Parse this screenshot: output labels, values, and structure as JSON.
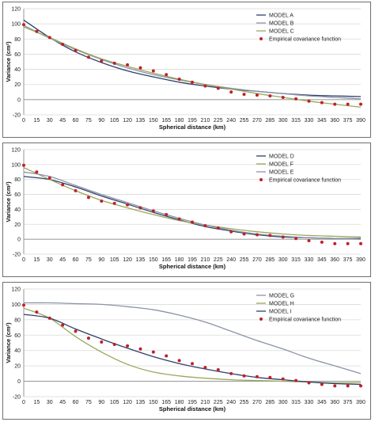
{
  "chart_data": [
    {
      "type": "line",
      "xlabel": "Spherical distance (km)",
      "ylabel": "Variance (cm²)",
      "ylim": [
        -20,
        120
      ],
      "yticks": [
        -20,
        0,
        20,
        40,
        60,
        80,
        100,
        120
      ],
      "xticks": [
        0,
        15,
        30,
        45,
        60,
        75,
        90,
        105,
        120,
        135,
        150,
        165,
        180,
        195,
        210,
        225,
        240,
        255,
        270,
        285,
        300,
        315,
        330,
        345,
        360,
        375,
        390
      ],
      "grid": "horizontal",
      "legend": "top-right",
      "series": [
        {
          "name": "MODEL A",
          "color": "#2f3f6b",
          "style": "line",
          "x": [
            0,
            30,
            60,
            90,
            120,
            150,
            180,
            210,
            240,
            270,
            300,
            330,
            360,
            390
          ],
          "y": [
            105,
            82,
            63,
            49,
            38,
            30,
            23,
            18,
            14,
            11,
            8,
            6,
            5,
            4
          ]
        },
        {
          "name": "MODEL B",
          "color": "#8b93a8",
          "style": "line",
          "x": [
            0,
            30,
            60,
            90,
            120,
            150,
            180,
            210,
            240,
            270,
            300,
            330,
            360,
            390
          ],
          "y": [
            98,
            81,
            66,
            53,
            42,
            33,
            26,
            20,
            15,
            11,
            8,
            5,
            3,
            1
          ]
        },
        {
          "name": "MODEL C",
          "color": "#9aa85a",
          "style": "line",
          "x": [
            0,
            30,
            60,
            90,
            120,
            150,
            180,
            210,
            240,
            270,
            300,
            330,
            360,
            390
          ],
          "y": [
            96,
            82,
            67,
            54,
            44,
            35,
            27,
            20,
            14,
            8,
            3,
            -2,
            -6,
            -10
          ]
        },
        {
          "name": "Empirical covariance function",
          "color": "#c0202a",
          "style": "points",
          "x": [
            0,
            15,
            30,
            45,
            60,
            75,
            90,
            105,
            120,
            135,
            150,
            165,
            180,
            195,
            210,
            225,
            240,
            255,
            270,
            285,
            300,
            315,
            330,
            345,
            360,
            375,
            390
          ],
          "y": [
            99,
            90,
            82,
            73,
            65,
            56,
            51,
            48,
            46,
            42,
            38,
            33,
            27,
            23,
            18,
            15,
            10,
            7,
            6,
            5,
            3,
            1,
            -2,
            -4,
            -6,
            -6,
            -6
          ]
        }
      ]
    },
    {
      "type": "line",
      "xlabel": "Spherical distance (km)",
      "ylabel": "Variance (cm²)",
      "ylim": [
        -20,
        120
      ],
      "yticks": [
        -20,
        0,
        20,
        40,
        60,
        80,
        100,
        120
      ],
      "xticks": [
        0,
        15,
        30,
        45,
        60,
        75,
        90,
        105,
        120,
        135,
        150,
        165,
        180,
        195,
        210,
        225,
        240,
        255,
        270,
        285,
        300,
        315,
        330,
        345,
        360,
        375,
        390
      ],
      "grid": "horizontal",
      "legend": "top-right",
      "series": [
        {
          "name": "MODEL D",
          "color": "#2f3f6b",
          "style": "line",
          "x": [
            0,
            30,
            60,
            90,
            120,
            150,
            180,
            210,
            240,
            270,
            300,
            330,
            360,
            390
          ],
          "y": [
            84,
            80,
            70,
            58,
            47,
            36,
            26,
            17,
            11,
            6,
            3,
            2,
            1,
            1
          ]
        },
        {
          "name": "MODEL F",
          "color": "#9aa85a",
          "style": "line",
          "x": [
            0,
            30,
            60,
            90,
            120,
            150,
            180,
            210,
            240,
            270,
            300,
            330,
            360,
            390
          ],
          "y": [
            96,
            80,
            65,
            52,
            42,
            33,
            25,
            19,
            14,
            10,
            7,
            5,
            4,
            3
          ]
        },
        {
          "name": "MODEL E",
          "color": "#8b93a8",
          "style": "line",
          "x": [
            0,
            30,
            60,
            90,
            120,
            150,
            180,
            210,
            240,
            270,
            300,
            330,
            360,
            390
          ],
          "y": [
            90,
            84,
            72,
            60,
            49,
            38,
            28,
            19,
            12,
            7,
            4,
            2,
            1,
            0
          ]
        },
        {
          "name": "Empirical covariance function",
          "color": "#c0202a",
          "style": "points",
          "x": [
            0,
            15,
            30,
            45,
            60,
            75,
            90,
            105,
            120,
            135,
            150,
            165,
            180,
            195,
            210,
            225,
            240,
            255,
            270,
            285,
            300,
            315,
            330,
            345,
            360,
            375,
            390
          ],
          "y": [
            99,
            90,
            82,
            73,
            65,
            56,
            51,
            48,
            46,
            42,
            38,
            33,
            27,
            23,
            18,
            15,
            10,
            7,
            6,
            5,
            3,
            1,
            -2,
            -4,
            -6,
            -6,
            -6
          ]
        }
      ]
    },
    {
      "type": "line",
      "xlabel": "Spherical distance (km)",
      "ylabel": "Variance (cm²)",
      "ylim": [
        -20,
        120
      ],
      "yticks": [
        -20,
        0,
        20,
        40,
        60,
        80,
        100,
        120
      ],
      "xticks": [
        0,
        15,
        30,
        45,
        60,
        75,
        90,
        105,
        120,
        135,
        150,
        165,
        180,
        195,
        210,
        225,
        240,
        255,
        270,
        285,
        300,
        315,
        330,
        345,
        360,
        375,
        390
      ],
      "grid": "horizontal",
      "legend": "top-right",
      "series": [
        {
          "name": "MODEL G",
          "color": "#8b93a8",
          "style": "line",
          "x": [
            0,
            30,
            60,
            90,
            120,
            150,
            180,
            210,
            240,
            270,
            300,
            330,
            360,
            390
          ],
          "y": [
            102,
            102,
            101,
            100,
            97,
            93,
            86,
            77,
            65,
            53,
            42,
            30,
            20,
            10
          ]
        },
        {
          "name": "MODEL H",
          "color": "#9aa85a",
          "style": "line",
          "x": [
            0,
            30,
            60,
            90,
            120,
            150,
            180,
            210,
            240,
            270,
            300,
            330,
            360,
            390
          ],
          "y": [
            95,
            82,
            58,
            38,
            22,
            12,
            7,
            4,
            2,
            1,
            0,
            -1,
            -2,
            -2
          ]
        },
        {
          "name": "MODEL I",
          "color": "#2f3f6b",
          "style": "line",
          "x": [
            0,
            30,
            60,
            90,
            120,
            150,
            180,
            210,
            240,
            270,
            300,
            330,
            360,
            390
          ],
          "y": [
            87,
            82,
            68,
            55,
            43,
            32,
            23,
            16,
            10,
            5,
            2,
            -1,
            -3,
            -4
          ]
        },
        {
          "name": "Empirical covariance function",
          "color": "#c0202a",
          "style": "points",
          "x": [
            0,
            15,
            30,
            45,
            60,
            75,
            90,
            105,
            120,
            135,
            150,
            165,
            180,
            195,
            210,
            225,
            240,
            255,
            270,
            285,
            300,
            315,
            330,
            345,
            360,
            375,
            390
          ],
          "y": [
            99,
            90,
            82,
            73,
            65,
            56,
            51,
            48,
            46,
            42,
            38,
            33,
            27,
            23,
            18,
            15,
            10,
            7,
            6,
            5,
            3,
            1,
            -2,
            -4,
            -6,
            -6,
            -6
          ]
        }
      ]
    }
  ]
}
